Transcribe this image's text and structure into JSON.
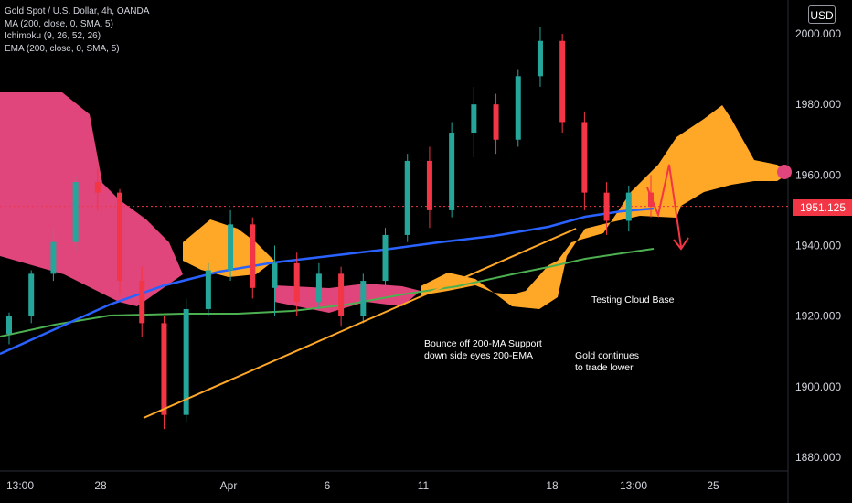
{
  "header": {
    "title": "Gold Spot / U.S. Dollar, 4h, OANDA",
    "indicators": [
      "MA (200, close, 0, SMA, 5)",
      "Ichimoku (9, 26, 52, 26)",
      "EMA (200, close, 0, SMA, 5)"
    ],
    "currency": "USD"
  },
  "last_price_label": "1951.125",
  "annotations": {
    "bounce": "Bounce off 200-MA Support\ndown side eyes 200-EMA",
    "gold": "Gold continues\nto trade lower",
    "cloud": "Testing Cloud Base"
  },
  "colors": {
    "background": "#000000",
    "candle_up": "#26a69a",
    "candle_down": "#f23645",
    "ma200": "#2962ff",
    "ema200": "#4caf50",
    "cloud_bull": "#ffa726",
    "cloud_bear": "#e0457b",
    "trendline": "#ffa726",
    "arrow": "#f23645"
  },
  "chart_data": {
    "type": "line",
    "yaxis_ticks": [
      "2000.000",
      "1980.000",
      "1960.000",
      "1940.000",
      "1920.000",
      "1900.000",
      "1880.000"
    ],
    "ylim": [
      1875,
      2008
    ],
    "xaxis_ticks": [
      "13:00",
      "28",
      "Apr",
      "6",
      "11",
      "18",
      "13:00",
      "25"
    ],
    "last_price": 1951.125,
    "ohlc_sample": [
      {
        "o": 1915,
        "h": 1921,
        "c": 1920,
        "l": 1912
      },
      {
        "o": 1920,
        "h": 1933,
        "c": 1932,
        "l": 1918
      },
      {
        "o": 1932,
        "h": 1945,
        "c": 1941,
        "l": 1930
      },
      {
        "o": 1941,
        "h": 1960,
        "c": 1958,
        "l": 1938
      },
      {
        "o": 1958,
        "h": 1962,
        "c": 1955,
        "l": 1950
      },
      {
        "o": 1955,
        "h": 1956,
        "c": 1930,
        "l": 1926
      },
      {
        "o": 1930,
        "h": 1934,
        "c": 1918,
        "l": 1914
      },
      {
        "o": 1918,
        "h": 1920,
        "c": 1892,
        "l": 1888
      },
      {
        "o": 1892,
        "h": 1925,
        "c": 1922,
        "l": 1890
      },
      {
        "o": 1922,
        "h": 1935,
        "c": 1933,
        "l": 1920
      },
      {
        "o": 1933,
        "h": 1950,
        "c": 1946,
        "l": 1930
      },
      {
        "o": 1946,
        "h": 1948,
        "c": 1928,
        "l": 1925
      },
      {
        "o": 1928,
        "h": 1940,
        "c": 1935,
        "l": 1920
      },
      {
        "o": 1935,
        "h": 1938,
        "c": 1924,
        "l": 1920
      },
      {
        "o": 1924,
        "h": 1935,
        "c": 1932,
        "l": 1922
      },
      {
        "o": 1932,
        "h": 1934,
        "c": 1920,
        "l": 1917
      },
      {
        "o": 1920,
        "h": 1932,
        "c": 1930,
        "l": 1918
      },
      {
        "o": 1930,
        "h": 1945,
        "c": 1943,
        "l": 1928
      },
      {
        "o": 1943,
        "h": 1966,
        "c": 1964,
        "l": 1941
      },
      {
        "o": 1964,
        "h": 1968,
        "c": 1950,
        "l": 1945
      },
      {
        "o": 1950,
        "h": 1975,
        "c": 1972,
        "l": 1948
      },
      {
        "o": 1972,
        "h": 1985,
        "c": 1980,
        "l": 1965
      },
      {
        "o": 1980,
        "h": 1983,
        "c": 1970,
        "l": 1966
      },
      {
        "o": 1970,
        "h": 1990,
        "c": 1988,
        "l": 1968
      },
      {
        "o": 1988,
        "h": 2002,
        "c": 1998,
        "l": 1985
      },
      {
        "o": 1998,
        "h": 2000,
        "c": 1975,
        "l": 1972
      },
      {
        "o": 1975,
        "h": 1978,
        "c": 1955,
        "l": 1950
      },
      {
        "o": 1955,
        "h": 1958,
        "c": 1947,
        "l": 1943
      },
      {
        "o": 1947,
        "h": 1957,
        "c": 1955,
        "l": 1944
      },
      {
        "o": 1955,
        "h": 1960,
        "c": 1951,
        "l": 1948
      }
    ]
  }
}
